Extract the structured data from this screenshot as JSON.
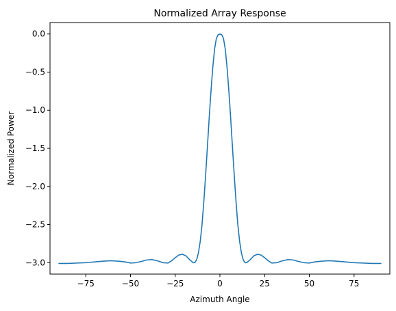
{
  "chart_data": {
    "type": "line",
    "title": "Normalized Array Response",
    "xlabel": "Azimuth Angle",
    "ylabel": "Normalized Power",
    "xlim": [
      -95,
      95
    ],
    "ylim": [
      -3.15,
      0.15
    ],
    "xticks": [
      -75,
      -50,
      -25,
      0,
      25,
      50,
      75
    ],
    "xtick_labels": [
      "−75",
      "−50",
      "−25",
      "0",
      "25",
      "50",
      "75"
    ],
    "yticks": [
      0.0,
      -0.5,
      -1.0,
      -1.5,
      -2.0,
      -2.5,
      -3.0
    ],
    "ytick_labels": [
      "0.0",
      "−0.5",
      "−1.0",
      "−1.5",
      "−2.0",
      "−2.5",
      "−3.0"
    ],
    "grid": false,
    "legend": "none",
    "series_color": "#1f77b4",
    "series": [
      {
        "x": [
          -90,
          -85,
          -80,
          -75,
          -70,
          -65,
          -61,
          -57,
          -53,
          -50,
          -47,
          -44,
          -41,
          -38,
          -35,
          -32,
          -29,
          -27,
          -25,
          -23,
          -21,
          -19,
          -17,
          -15,
          -14,
          -13,
          -12,
          -11,
          -10,
          -9,
          -8,
          -7,
          -6,
          -5,
          -4,
          -3,
          -2,
          -1,
          0,
          1,
          2,
          3,
          4,
          5,
          6,
          7,
          8,
          9,
          10,
          11,
          12,
          13,
          14,
          15,
          17,
          19,
          21,
          23,
          25,
          27,
          29,
          32,
          35,
          38,
          41,
          44,
          47,
          50,
          53,
          57,
          61,
          65,
          70,
          75,
          80,
          85,
          90
        ],
        "y": [
          -3.01,
          -3.01,
          -3.005,
          -3.0,
          -2.99,
          -2.98,
          -2.975,
          -2.98,
          -2.99,
          -3.005,
          -3.0,
          -2.985,
          -2.965,
          -2.96,
          -2.975,
          -3.0,
          -3.005,
          -2.975,
          -2.935,
          -2.9,
          -2.89,
          -2.91,
          -2.96,
          -3.0,
          -3.0,
          -2.96,
          -2.87,
          -2.72,
          -2.5,
          -2.2,
          -1.85,
          -1.48,
          -1.1,
          -0.75,
          -0.44,
          -0.2,
          -0.06,
          -0.01,
          0.0,
          -0.01,
          -0.06,
          -0.2,
          -0.44,
          -0.75,
          -1.1,
          -1.48,
          -1.85,
          -2.2,
          -2.5,
          -2.72,
          -2.87,
          -2.96,
          -3.0,
          -3.0,
          -2.96,
          -2.91,
          -2.89,
          -2.9,
          -2.935,
          -2.975,
          -3.005,
          -3.0,
          -2.975,
          -2.96,
          -2.965,
          -2.985,
          -3.0,
          -3.005,
          -2.99,
          -2.98,
          -2.975,
          -2.98,
          -2.99,
          -3.0,
          -3.005,
          -3.01,
          -3.01
        ]
      }
    ]
  }
}
